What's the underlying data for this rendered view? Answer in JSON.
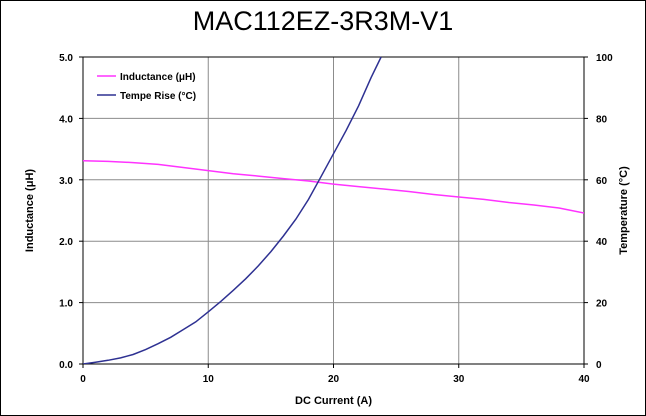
{
  "chart_data": {
    "type": "line",
    "title": "MAC112EZ-3R3M-V1",
    "xlabel": "DC Current (A)",
    "ylabel_left": "Inductance (μH)",
    "ylabel_right": "Temperature (°C)",
    "xlim": [
      0,
      40
    ],
    "ylim_left": [
      0,
      5
    ],
    "ylim_right": [
      0,
      100
    ],
    "x_ticks": [
      "0",
      "10",
      "20",
      "30",
      "40"
    ],
    "y_left_ticks": [
      "0.0",
      "1.0",
      "2.0",
      "3.0",
      "4.0",
      "5.0"
    ],
    "y_right_ticks": [
      "0",
      "20",
      "40",
      "60",
      "80",
      "100"
    ],
    "grid": true,
    "legend_position": "top-left",
    "series": [
      {
        "name": "Inductance (μH)",
        "axis": "left",
        "color": "#ff33ff",
        "x": [
          0,
          2,
          4,
          6,
          8,
          10,
          12,
          14,
          16,
          18,
          20,
          22,
          24,
          26,
          28,
          30,
          32,
          34,
          36,
          38,
          40
        ],
        "values": [
          3.31,
          3.3,
          3.28,
          3.25,
          3.2,
          3.15,
          3.1,
          3.06,
          3.02,
          2.98,
          2.93,
          2.89,
          2.85,
          2.81,
          2.76,
          2.72,
          2.68,
          2.63,
          2.59,
          2.54,
          2.46
        ]
      },
      {
        "name": "Tempe Rise (°C)",
        "axis": "right",
        "color": "#2e3192",
        "x": [
          0,
          1,
          2,
          3,
          4,
          5,
          6,
          7,
          8,
          9,
          10,
          11,
          12,
          13,
          14,
          15,
          16,
          17,
          18,
          19,
          20,
          21,
          22,
          23,
          23.8
        ],
        "values": [
          0,
          0.6,
          1.2,
          2.0,
          3.1,
          4.7,
          6.6,
          8.7,
          11.2,
          13.7,
          17.0,
          20.4,
          24.0,
          27.8,
          32.0,
          36.6,
          41.7,
          47.2,
          53.6,
          61.0,
          68.5,
          76.0,
          84.1,
          93.3,
          100
        ]
      }
    ]
  }
}
